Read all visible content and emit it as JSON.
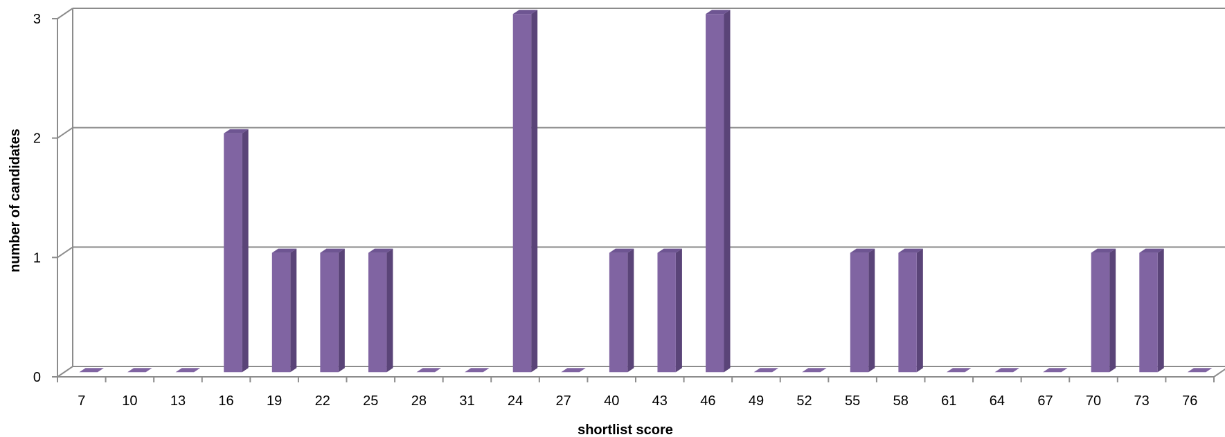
{
  "chart_data": {
    "type": "bar",
    "title": "",
    "xlabel": "shortlist score",
    "ylabel": "number of candidates",
    "categories": [
      "7",
      "10",
      "13",
      "16",
      "19",
      "22",
      "25",
      "28",
      "31",
      "24",
      "27",
      "40",
      "43",
      "46",
      "49",
      "52",
      "55",
      "58",
      "61",
      "64",
      "67",
      "70",
      "73",
      "76"
    ],
    "values": [
      0,
      0,
      0,
      2,
      1,
      1,
      1,
      0,
      0,
      3,
      0,
      1,
      1,
      3,
      0,
      0,
      1,
      1,
      0,
      0,
      0,
      1,
      1,
      0
    ],
    "ylim": [
      0,
      3
    ],
    "yticks": [
      "0",
      "1",
      "2",
      "3"
    ],
    "grid": true,
    "legend": "none",
    "style": "3d-column"
  },
  "colors": {
    "bar_front": "#8064a2",
    "bar_side": "#5a4478",
    "bar_top": "#6e5592",
    "gridline": "#8c8c8c",
    "axis": "#8c8c8c"
  }
}
